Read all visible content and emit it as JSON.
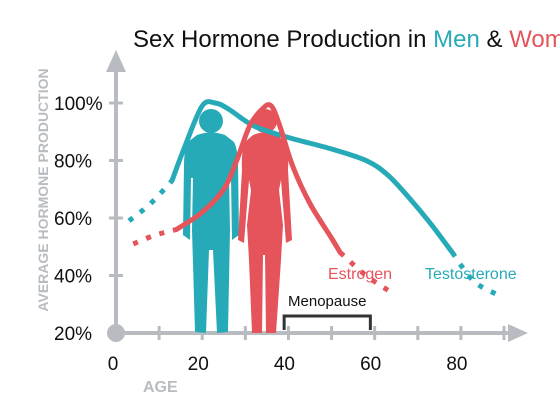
{
  "chart_data": {
    "type": "line",
    "title": {
      "prefix": "Sex Hormone Production in ",
      "men": "Men",
      "amp": " & ",
      "women": "Women"
    },
    "ylabel": "AVERAGE HORMONE PRODUCTION",
    "xlabel": "AGE",
    "xlim": [
      0,
      90
    ],
    "ylim": [
      20,
      100
    ],
    "x_ticks": [
      {
        "value": 0,
        "label": "0"
      },
      {
        "value": 20,
        "label": "20"
      },
      {
        "value": 40,
        "label": "40"
      },
      {
        "value": 60,
        "label": "60"
      },
      {
        "value": 80,
        "label": "80"
      }
    ],
    "y_ticks": [
      {
        "value": 20,
        "label": "20%"
      },
      {
        "value": 40,
        "label": "40%"
      },
      {
        "value": 60,
        "label": "60%"
      },
      {
        "value": 80,
        "label": "80%"
      },
      {
        "value": 100,
        "label": "100%"
      }
    ],
    "series": [
      {
        "name": "Testosterone",
        "color": "#27aab8",
        "dotted_before": [
          [
            3,
            59
          ],
          [
            8,
            65
          ],
          [
            13,
            73
          ]
        ],
        "solid": [
          [
            13,
            73
          ],
          [
            16,
            85
          ],
          [
            20,
            99
          ],
          [
            23,
            100
          ],
          [
            26,
            98
          ],
          [
            32,
            92
          ],
          [
            40,
            88
          ],
          [
            50,
            84
          ],
          [
            58,
            80
          ],
          [
            63,
            75
          ],
          [
            68,
            67
          ],
          [
            73,
            58
          ],
          [
            78,
            48
          ]
        ],
        "dotted_after": [
          [
            78,
            48
          ],
          [
            83,
            38
          ],
          [
            89,
            33
          ]
        ]
      },
      {
        "name": "Estrogen",
        "color": "#e5535b",
        "dotted_before": [
          [
            4,
            51
          ],
          [
            9,
            54
          ],
          [
            14,
            56
          ]
        ],
        "solid": [
          [
            14,
            56
          ],
          [
            20,
            62
          ],
          [
            25,
            70
          ],
          [
            28,
            80
          ],
          [
            31,
            92
          ],
          [
            34,
            98
          ],
          [
            36,
            99
          ],
          [
            38,
            92
          ],
          [
            41,
            78
          ],
          [
            45,
            65
          ],
          [
            50,
            53
          ],
          [
            52,
            48
          ]
        ],
        "dotted_after": [
          [
            52,
            48
          ],
          [
            58,
            40
          ],
          [
            64,
            34
          ]
        ]
      }
    ],
    "annotation": {
      "label": "Menopause",
      "x_start": 39,
      "x_end": 59
    }
  },
  "colors": {
    "men": "#27aab8",
    "women": "#e5535b",
    "axis": "#b8bcc0",
    "text": "#111111"
  },
  "icons": [
    "male-silhouette-icon",
    "female-silhouette-icon"
  ]
}
